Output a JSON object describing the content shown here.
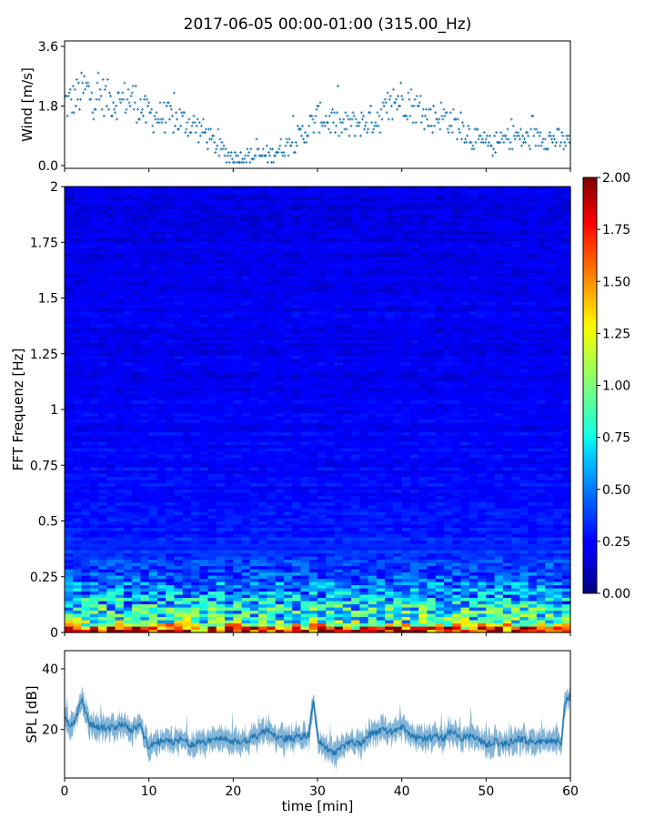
{
  "title": "2017-06-05 00:00-01:00 (315.00_Hz)",
  "chart_data": [
    {
      "id": "wind",
      "type": "scatter",
      "ylabel": "Wind [m/s]",
      "xlim": [
        0,
        60
      ],
      "ylim": [
        0,
        3.6
      ],
      "yticks": [
        0.0,
        1.8,
        3.6
      ],
      "ytick_labels": [
        "0.0",
        "1.8",
        "3.6"
      ],
      "marker_color": "#1f77b4",
      "x": [
        0.5,
        1.5,
        2.5,
        3.5,
        4.5,
        5.5,
        6.5,
        7.5,
        8.5,
        9.5,
        10.5,
        11.5,
        12.5,
        13.5,
        14.5,
        15.5,
        16.5,
        17.5,
        18.5,
        19.5,
        20.5,
        21.5,
        22.5,
        23.5,
        24.5,
        25.5,
        26.5,
        27.5,
        28.5,
        29.5,
        30.5,
        31.5,
        32.5,
        33.5,
        34.5,
        35.5,
        36.5,
        37.5,
        38.5,
        39.5,
        40.5,
        41.5,
        42.5,
        43.5,
        44.5,
        45.5,
        46.5,
        47.5,
        48.5,
        49.5,
        50.5,
        51.5,
        52.5,
        53.5,
        54.5,
        55.5,
        56.5,
        57.5,
        58.5,
        59.5
      ],
      "y": [
        1.9,
        2.1,
        2.3,
        2.0,
        2.1,
        2.0,
        1.9,
        2.1,
        1.9,
        1.6,
        1.5,
        1.5,
        1.4,
        1.4,
        1.3,
        1.2,
        1.0,
        0.7,
        0.5,
        0.3,
        0.25,
        0.3,
        0.3,
        0.3,
        0.35,
        0.5,
        0.6,
        0.8,
        1.0,
        1.3,
        1.5,
        1.3,
        1.2,
        1.2,
        1.3,
        1.3,
        1.4,
        1.5,
        1.7,
        2.0,
        2.0,
        1.8,
        1.5,
        1.4,
        1.5,
        1.4,
        1.2,
        1.1,
        0.8,
        0.7,
        0.6,
        0.7,
        0.8,
        0.9,
        0.8,
        0.8,
        0.9,
        0.8,
        0.8,
        0.7
      ]
    },
    {
      "id": "spectrogram",
      "type": "heatmap",
      "ylabel": "FFT Frequenz [Hz]",
      "xlim": [
        0,
        60
      ],
      "ylim": [
        0,
        2
      ],
      "yticks": [
        0,
        0.25,
        0.5,
        0.75,
        1,
        1.25,
        1.5,
        1.75,
        2
      ],
      "ytick_labels": [
        "0",
        "0.25",
        "0.5",
        "0.75",
        "1",
        "1.25",
        "1.5",
        "1.75",
        "2"
      ],
      "colormap": "jet",
      "colorbar": {
        "range": [
          0.0,
          2.0
        ],
        "ticks": [
          0.0,
          0.25,
          0.5,
          0.75,
          1.0,
          1.25,
          1.5,
          1.75,
          2.0
        ],
        "tick_labels": [
          "0.00",
          "0.25",
          "0.50",
          "0.75",
          "1.00",
          "1.25",
          "1.50",
          "1.75",
          "2.00"
        ]
      },
      "freq_profile": {
        "freq": [
          0,
          0.02,
          0.05,
          0.1,
          0.15,
          0.25,
          0.4,
          0.6,
          1.0,
          1.5,
          2.0
        ],
        "value": [
          1.9,
          1.5,
          0.95,
          0.75,
          0.6,
          0.42,
          0.32,
          0.26,
          0.22,
          0.2,
          0.18
        ]
      }
    },
    {
      "id": "spl",
      "type": "line",
      "ylabel": "SPL [dB]",
      "xlabel": "time [min]",
      "xlim": [
        0,
        60
      ],
      "ylim": [
        4,
        46
      ],
      "yticks": [
        20,
        40
      ],
      "ytick_labels": [
        "20",
        "40"
      ],
      "xticks": [
        0,
        10,
        20,
        30,
        40,
        50,
        60
      ],
      "xtick_labels": [
        "0",
        "10",
        "20",
        "30",
        "40",
        "50",
        "60"
      ],
      "line_color": "#1f77b4",
      "x": [
        0,
        1,
        2,
        3,
        4,
        5,
        6,
        7,
        8,
        9,
        10,
        11,
        12,
        13,
        14,
        15,
        16,
        17,
        18,
        19,
        20,
        21,
        22,
        23,
        24,
        25,
        26,
        27,
        28,
        29,
        29.5,
        30,
        31,
        32,
        33,
        34,
        35,
        36,
        37,
        38,
        39,
        40,
        41,
        42,
        43,
        44,
        45,
        46,
        47,
        48,
        49,
        50,
        51,
        52,
        53,
        54,
        55,
        56,
        57,
        58,
        58.9,
        59.3,
        60
      ],
      "y": [
        24,
        21,
        30,
        22,
        21,
        20,
        21,
        22,
        20,
        21,
        14,
        16,
        16,
        16,
        17,
        15,
        16,
        16,
        17,
        17,
        16,
        16,
        17,
        18,
        20,
        18,
        17,
        17,
        18,
        18,
        30,
        17,
        14,
        12,
        15,
        16,
        15,
        18,
        19,
        20,
        19,
        21,
        18,
        17,
        17,
        18,
        17,
        20,
        17,
        18,
        17,
        15,
        16,
        15,
        16,
        17,
        16,
        16,
        16,
        16,
        16,
        28,
        32
      ]
    }
  ]
}
